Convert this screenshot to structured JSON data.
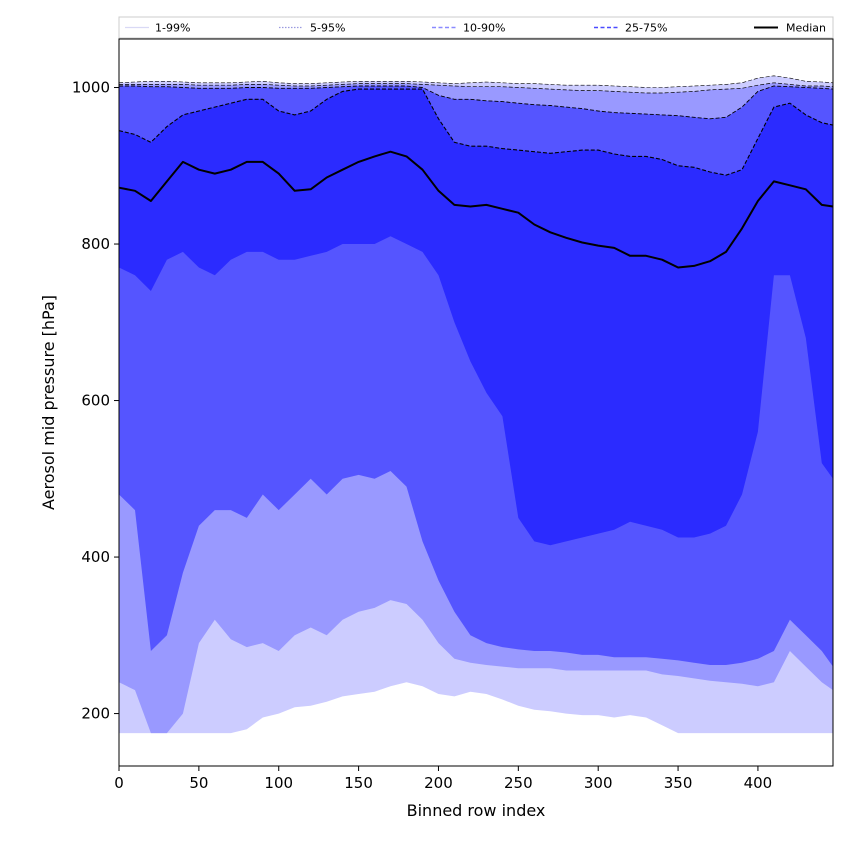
{
  "chart_data": {
    "type": "area",
    "title": "",
    "xlabel": "Binned row index",
    "ylabel": "Aerosol mid pressure [hPa]",
    "xlim": [
      0,
      447
    ],
    "ylim": [
      133,
      1062
    ],
    "xticks": [
      0,
      50,
      100,
      150,
      200,
      250,
      300,
      350,
      400
    ],
    "yticks": [
      200,
      400,
      600,
      800,
      1000
    ],
    "grid": false,
    "legend": {
      "placement": "top",
      "entries": [
        {
          "label": "1-99%",
          "color": "#d9d9f5",
          "style": "solid"
        },
        {
          "label": "5-95%",
          "color": "#9a9adf",
          "style": "dotted"
        },
        {
          "label": "10-90%",
          "color": "#8a8aff",
          "style": "dashed"
        },
        {
          "label": "25-75%",
          "color": "#4b4bff",
          "style": "dashed"
        },
        {
          "label": "Median",
          "color": "#000000",
          "style": "solid"
        }
      ]
    },
    "x": [
      0,
      10,
      20,
      30,
      40,
      50,
      60,
      70,
      80,
      90,
      100,
      110,
      120,
      130,
      140,
      150,
      160,
      170,
      180,
      190,
      200,
      210,
      220,
      230,
      240,
      250,
      260,
      270,
      280,
      290,
      300,
      310,
      320,
      330,
      340,
      350,
      360,
      370,
      380,
      390,
      400,
      410,
      420,
      430,
      440,
      447
    ],
    "bands": [
      {
        "name": "1-99%",
        "color": "#ccccff",
        "lower": [
          175,
          175,
          175,
          175,
          175,
          175,
          175,
          175,
          180,
          195,
          200,
          208,
          210,
          215,
          222,
          225,
          228,
          235,
          240,
          235,
          225,
          222,
          228,
          225,
          218,
          210,
          205,
          203,
          200,
          198,
          198,
          195,
          198,
          195,
          185,
          175,
          175,
          175,
          175,
          175,
          175,
          175,
          175,
          175,
          175,
          175
        ],
        "upper": [
          1006,
          1007,
          1008,
          1008,
          1007,
          1006,
          1006,
          1006,
          1007,
          1008,
          1006,
          1005,
          1005,
          1006,
          1007,
          1008,
          1008,
          1008,
          1008,
          1007,
          1006,
          1005,
          1006,
          1007,
          1006,
          1005,
          1005,
          1004,
          1003,
          1003,
          1003,
          1002,
          1001,
          1000,
          1000,
          1001,
          1002,
          1003,
          1004,
          1006,
          1012,
          1015,
          1012,
          1008,
          1007,
          1006
        ]
      },
      {
        "name": "5-95%",
        "color": "#9999ff",
        "lower": [
          240,
          230,
          175,
          175,
          200,
          290,
          320,
          295,
          285,
          290,
          280,
          300,
          310,
          300,
          320,
          330,
          335,
          345,
          340,
          320,
          290,
          270,
          265,
          262,
          260,
          258,
          258,
          258,
          255,
          255,
          255,
          255,
          255,
          255,
          250,
          248,
          245,
          242,
          240,
          238,
          235,
          240,
          280,
          260,
          240,
          230
        ],
        "upper": [
          1004,
          1004,
          1004,
          1004,
          1004,
          1003,
          1003,
          1003,
          1004,
          1004,
          1003,
          1002,
          1002,
          1003,
          1004,
          1005,
          1005,
          1005,
          1005,
          1004,
          1003,
          1002,
          1001,
          1001,
          1001,
          1000,
          999,
          998,
          997,
          996,
          996,
          995,
          994,
          993,
          993,
          994,
          995,
          997,
          998,
          999,
          1003,
          1006,
          1004,
          1002,
          1002,
          1001
        ]
      },
      {
        "name": "10-90%",
        "color": "#5555ff",
        "lower": [
          480,
          460,
          280,
          300,
          380,
          440,
          460,
          460,
          450,
          480,
          460,
          480,
          500,
          480,
          500,
          505,
          500,
          510,
          490,
          420,
          370,
          330,
          300,
          290,
          285,
          282,
          280,
          280,
          278,
          275,
          275,
          272,
          272,
          272,
          270,
          268,
          265,
          262,
          262,
          265,
          270,
          280,
          320,
          300,
          280,
          260
        ],
        "upper": [
          1002,
          1002,
          1001,
          1001,
          1000,
          999,
          999,
          999,
          1000,
          1000,
          999,
          999,
          999,
          1000,
          1001,
          1002,
          1002,
          1002,
          1002,
          1000,
          990,
          985,
          985,
          983,
          982,
          980,
          978,
          977,
          975,
          973,
          970,
          968,
          967,
          966,
          965,
          964,
          962,
          960,
          962,
          975,
          995,
          1002,
          1001,
          1000,
          999,
          998
        ]
      },
      {
        "name": "25-75%",
        "color": "#2b2bff",
        "lower": [
          770,
          760,
          740,
          780,
          790,
          770,
          760,
          780,
          790,
          790,
          780,
          780,
          785,
          790,
          800,
          800,
          800,
          810,
          800,
          790,
          760,
          700,
          650,
          610,
          580,
          450,
          420,
          415,
          420,
          425,
          430,
          435,
          445,
          440,
          435,
          425,
          425,
          430,
          440,
          480,
          560,
          760,
          760,
          680,
          520,
          500
        ],
        "upper": [
          945,
          940,
          930,
          950,
          965,
          970,
          975,
          980,
          985,
          985,
          970,
          965,
          970,
          985,
          995,
          998,
          998,
          998,
          998,
          998,
          960,
          930,
          925,
          925,
          922,
          920,
          918,
          916,
          918,
          920,
          920,
          915,
          912,
          912,
          908,
          900,
          898,
          892,
          888,
          895,
          935,
          975,
          980,
          965,
          955,
          952
        ]
      }
    ],
    "series": [
      {
        "name": "Median",
        "color": "#000000",
        "values": [
          872,
          868,
          855,
          880,
          905,
          895,
          890,
          895,
          905,
          905,
          890,
          868,
          870,
          885,
          895,
          905,
          912,
          918,
          912,
          895,
          868,
          850,
          848,
          850,
          845,
          840,
          825,
          815,
          808,
          802,
          798,
          795,
          785,
          785,
          780,
          770,
          772,
          778,
          790,
          820,
          855,
          880,
          875,
          870,
          850,
          848
        ]
      }
    ]
  }
}
